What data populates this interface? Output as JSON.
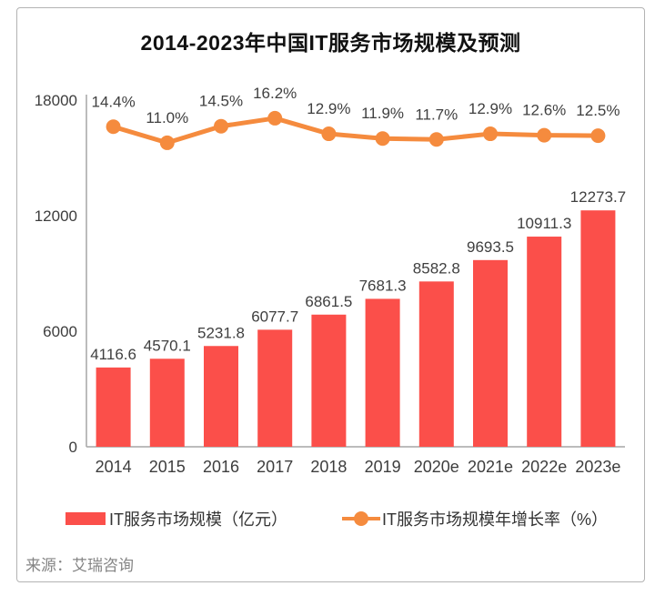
{
  "title": "2014-2023年中国IT服务市场规模及预测",
  "source": "来源：艾瑞咨询",
  "colors": {
    "bar": "#fb4f4a",
    "line": "#f58b3e",
    "axis": "#a6a6a6",
    "data_label": "#404040",
    "tick_label": "#3d3d3d",
    "title": "#111111",
    "source": "#848484",
    "card_border": "#b3b3b3"
  },
  "legend": {
    "bar_label": "IT服务市场规模（亿元）",
    "line_label": "IT服务市场规模年增长率（%）"
  },
  "chart_data": {
    "type": "bar",
    "subtype": "bar-with-line-overlay",
    "title": "2014-2023年中国IT服务市场规模及预测",
    "categories": [
      "2014",
      "2015",
      "2016",
      "2017",
      "2018",
      "2019",
      "2020e",
      "2021e",
      "2022e",
      "2023e"
    ],
    "series": [
      {
        "name": "IT服务市场规模（亿元）",
        "type": "bar",
        "color": "#fb4f4a",
        "axis": "left",
        "values": [
          4116.6,
          4570.1,
          5231.8,
          6077.7,
          6861.5,
          7681.3,
          8582.8,
          9693.5,
          10911.3,
          12273.7
        ]
      },
      {
        "name": "IT服务市场规模年增长率（%）",
        "type": "line",
        "color": "#f58b3e",
        "axis": "right-hidden",
        "values": [
          14.4,
          11.0,
          14.5,
          16.2,
          12.9,
          11.9,
          11.7,
          12.9,
          12.6,
          12.5
        ]
      }
    ],
    "xlabel": "",
    "ylabel": "",
    "y_axis": {
      "ticks": [
        0,
        6000,
        12000,
        18000
      ],
      "range": [
        0,
        18000
      ]
    },
    "grid": false,
    "legend_position": "bottom",
    "data_labels_shown": true
  }
}
